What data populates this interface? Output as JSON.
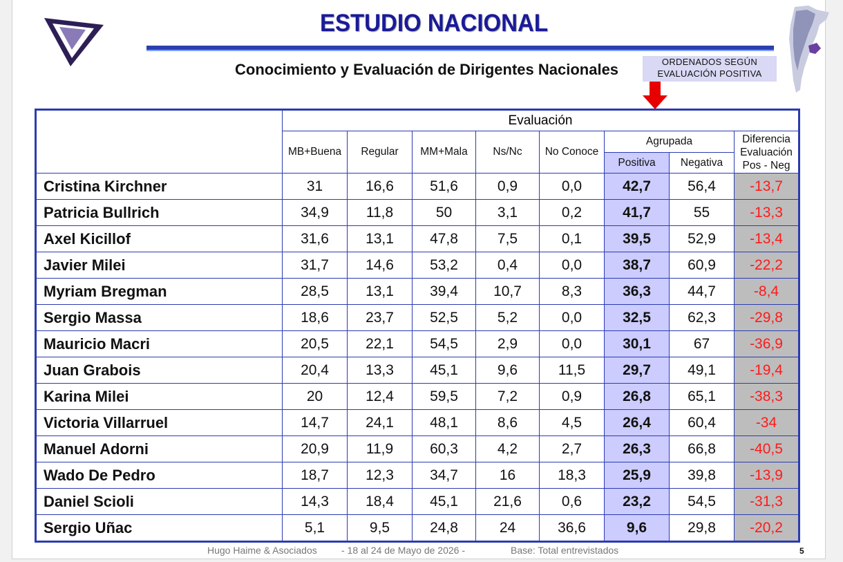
{
  "header": {
    "title": "ESTUDIO NACIONAL",
    "subtitle": "Conocimiento y Evaluación de Dirigentes Nacionales",
    "sort_note_line1": "ORDENADOS SEGÚN",
    "sort_note_line2": "EVALUACIÓN  POSITIVA"
  },
  "colors": {
    "title": "#1a1a9a",
    "border": "#2b3bb0",
    "positive_bg": "#ccccff",
    "diff_bg": "#bdbdbd",
    "diff_text": "#ff1a1a",
    "arrow": "#e60000"
  },
  "table": {
    "group_header": "Evaluación",
    "columns": [
      "MB+Buena",
      "Regular",
      "MM+Mala",
      "Ns/Nc",
      "No Conoce"
    ],
    "agrupada_header": "Agrupada",
    "agrupada_columns": [
      "Positiva",
      "Negativa"
    ],
    "diff_header": [
      "Diferencia",
      "Evaluación",
      "Pos - Neg"
    ],
    "rows": [
      {
        "name": "Cristina Kirchner",
        "mb": "31",
        "reg": "16,6",
        "mm": "51,6",
        "ns": "0,9",
        "nc": "0,0",
        "pos": "42,7",
        "neg": "56,4",
        "diff": "-13,7"
      },
      {
        "name": "Patricia Bullrich",
        "mb": "34,9",
        "reg": "11,8",
        "mm": "50",
        "ns": "3,1",
        "nc": "0,2",
        "pos": "41,7",
        "neg": "55",
        "diff": "-13,3"
      },
      {
        "name": "Axel Kicillof",
        "mb": "31,6",
        "reg": "13,1",
        "mm": "47,8",
        "ns": "7,5",
        "nc": "0,1",
        "pos": "39,5",
        "neg": "52,9",
        "diff": "-13,4"
      },
      {
        "name": "Javier Milei",
        "mb": "31,7",
        "reg": "14,6",
        "mm": "53,2",
        "ns": "0,4",
        "nc": "0,0",
        "pos": "38,7",
        "neg": "60,9",
        "diff": "-22,2"
      },
      {
        "name": "Myriam Bregman",
        "mb": "28,5",
        "reg": "13,1",
        "mm": "39,4",
        "ns": "10,7",
        "nc": "8,3",
        "pos": "36,3",
        "neg": "44,7",
        "diff": "-8,4"
      },
      {
        "name": "Sergio Massa",
        "mb": "18,6",
        "reg": "23,7",
        "mm": "52,5",
        "ns": "5,2",
        "nc": "0,0",
        "pos": "32,5",
        "neg": "62,3",
        "diff": "-29,8"
      },
      {
        "name": "Mauricio Macri",
        "mb": "20,5",
        "reg": "22,1",
        "mm": "54,5",
        "ns": "2,9",
        "nc": "0,0",
        "pos": "30,1",
        "neg": "67",
        "diff": "-36,9"
      },
      {
        "name": "Juan Grabois",
        "mb": "20,4",
        "reg": "13,3",
        "mm": "45,1",
        "ns": "9,6",
        "nc": "11,5",
        "pos": "29,7",
        "neg": "49,1",
        "diff": "-19,4"
      },
      {
        "name": "Karina Milei",
        "mb": "20",
        "reg": "12,4",
        "mm": "59,5",
        "ns": "7,2",
        "nc": "0,9",
        "pos": "26,8",
        "neg": "65,1",
        "diff": "-38,3"
      },
      {
        "name": "Victoria Villarruel",
        "mb": "14,7",
        "reg": "24,1",
        "mm": "48,1",
        "ns": "8,6",
        "nc": "4,5",
        "pos": "26,4",
        "neg": "60,4",
        "diff": "-34"
      },
      {
        "name": "Manuel Adorni",
        "mb": "20,9",
        "reg": "11,9",
        "mm": "60,3",
        "ns": "4,2",
        "nc": "2,7",
        "pos": "26,3",
        "neg": "66,8",
        "diff": "-40,5"
      },
      {
        "name": "Wado De Pedro",
        "mb": "18,7",
        "reg": "12,3",
        "mm": "34,7",
        "ns": "16",
        "nc": "18,3",
        "pos": "25,9",
        "neg": "39,8",
        "diff": "-13,9"
      },
      {
        "name": "Daniel Scioli",
        "mb": "14,3",
        "reg": "18,4",
        "mm": "45,1",
        "ns": "21,6",
        "nc": "0,6",
        "pos": "23,2",
        "neg": "54,5",
        "diff": "-31,3"
      },
      {
        "name": "Sergio Uñac",
        "mb": "5,1",
        "reg": "9,5",
        "mm": "24,8",
        "ns": "24",
        "nc": "36,6",
        "pos": "9,6",
        "neg": "29,8",
        "diff": "-20,2"
      }
    ]
  },
  "footer": {
    "company": "Hugo Haime & Asociados",
    "dates": "-  18 al 24 de Mayo de 2026   -",
    "base": "Base: Total entrevistados",
    "page": "5"
  }
}
